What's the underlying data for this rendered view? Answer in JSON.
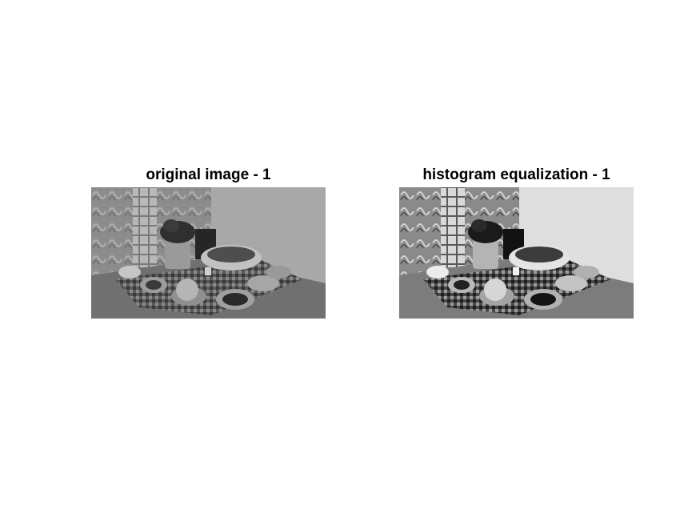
{
  "panels": [
    {
      "title": "original image - 1"
    },
    {
      "title": "histogram equalization - 1"
    }
  ]
}
